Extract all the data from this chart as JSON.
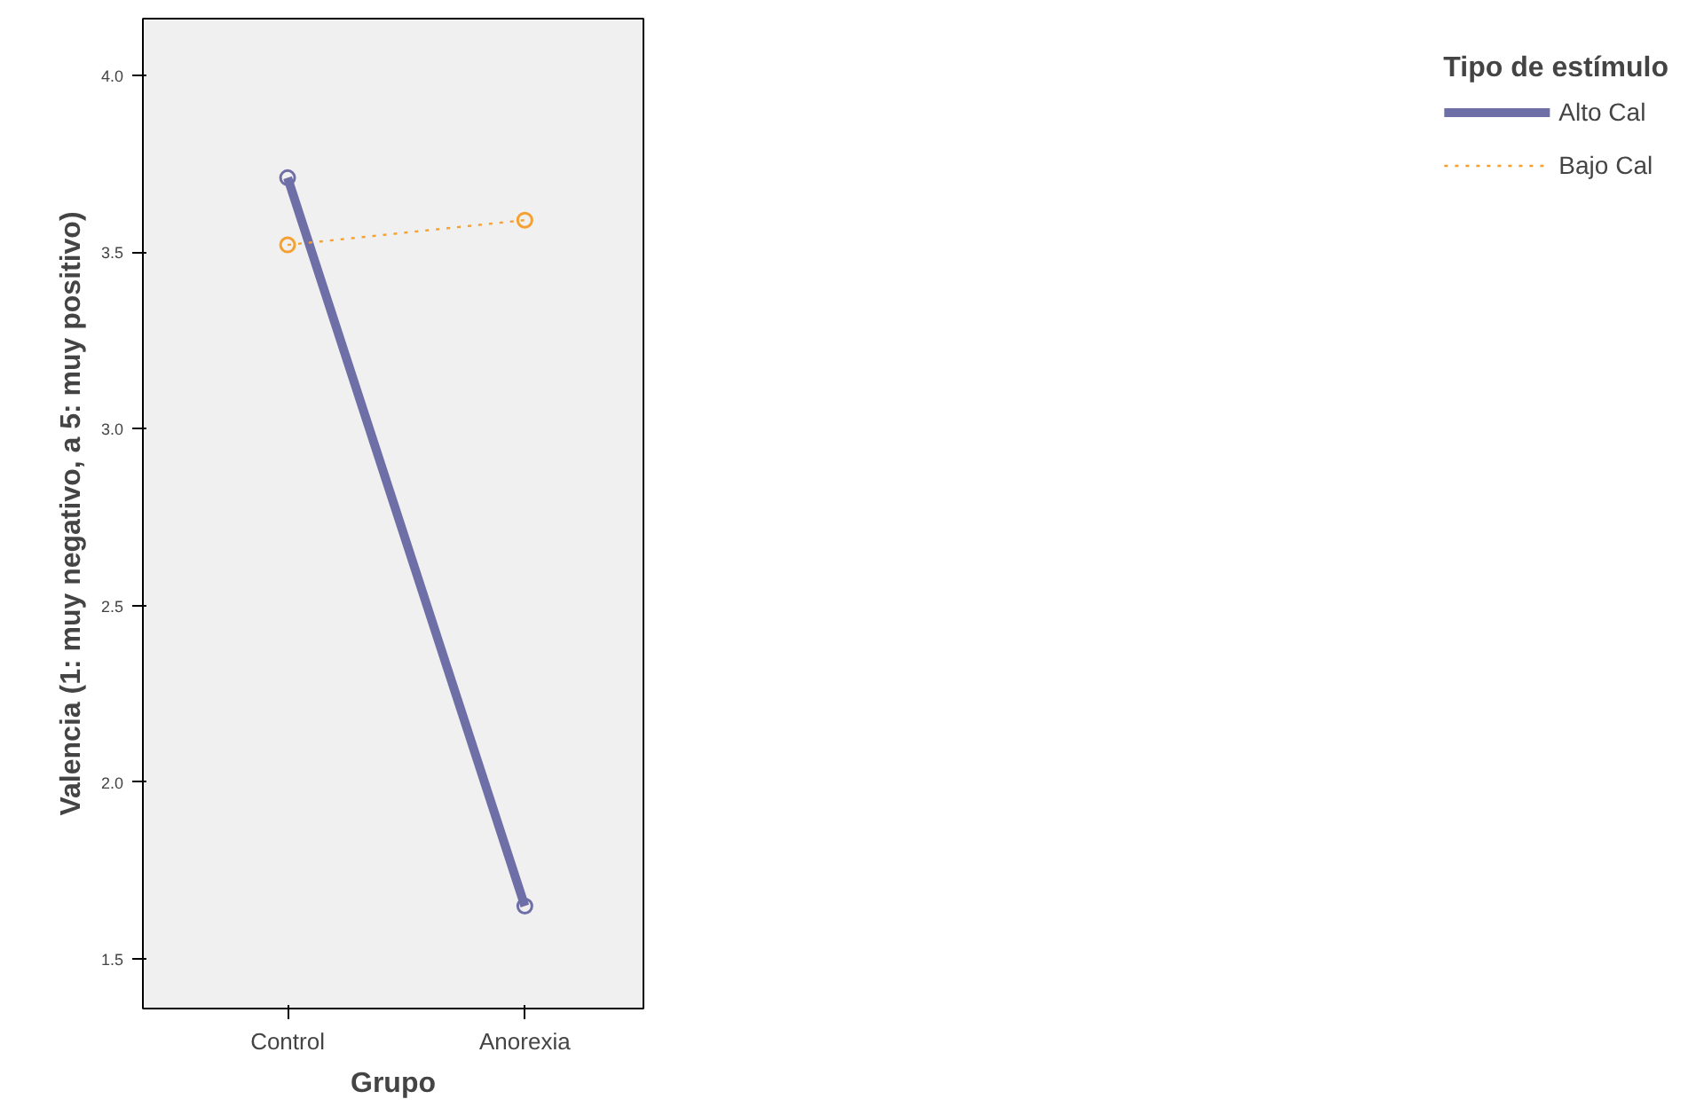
{
  "chart_data": {
    "type": "line",
    "xlabel": "Grupo",
    "ylabel": "Valencia (1: muy negativo, a 5: muy positivo)",
    "legend_title": "Tipo de estímulo",
    "categories": [
      "Control",
      "Anorexia"
    ],
    "series": [
      {
        "name": "Alto Cal",
        "color": "#6f6fa8",
        "values": [
          3.71,
          1.65
        ],
        "line_style": "solid"
      },
      {
        "name": "Bajo Cal",
        "color": "#f5a030",
        "values": [
          3.52,
          3.59
        ],
        "line_style": "dotted"
      }
    ],
    "ylim": [
      1.36,
      4.16
    ],
    "yticks": [
      {
        "value": 1.5,
        "label": "1.5"
      },
      {
        "value": 2.0,
        "label": "2.0"
      },
      {
        "value": 2.5,
        "label": "2.5"
      },
      {
        "value": 3.0,
        "label": "3.0"
      },
      {
        "value": 3.5,
        "label": "3.5"
      },
      {
        "value": 4.0,
        "label": "4.0"
      }
    ],
    "marker": "circle",
    "grid": false,
    "legend": "right"
  }
}
